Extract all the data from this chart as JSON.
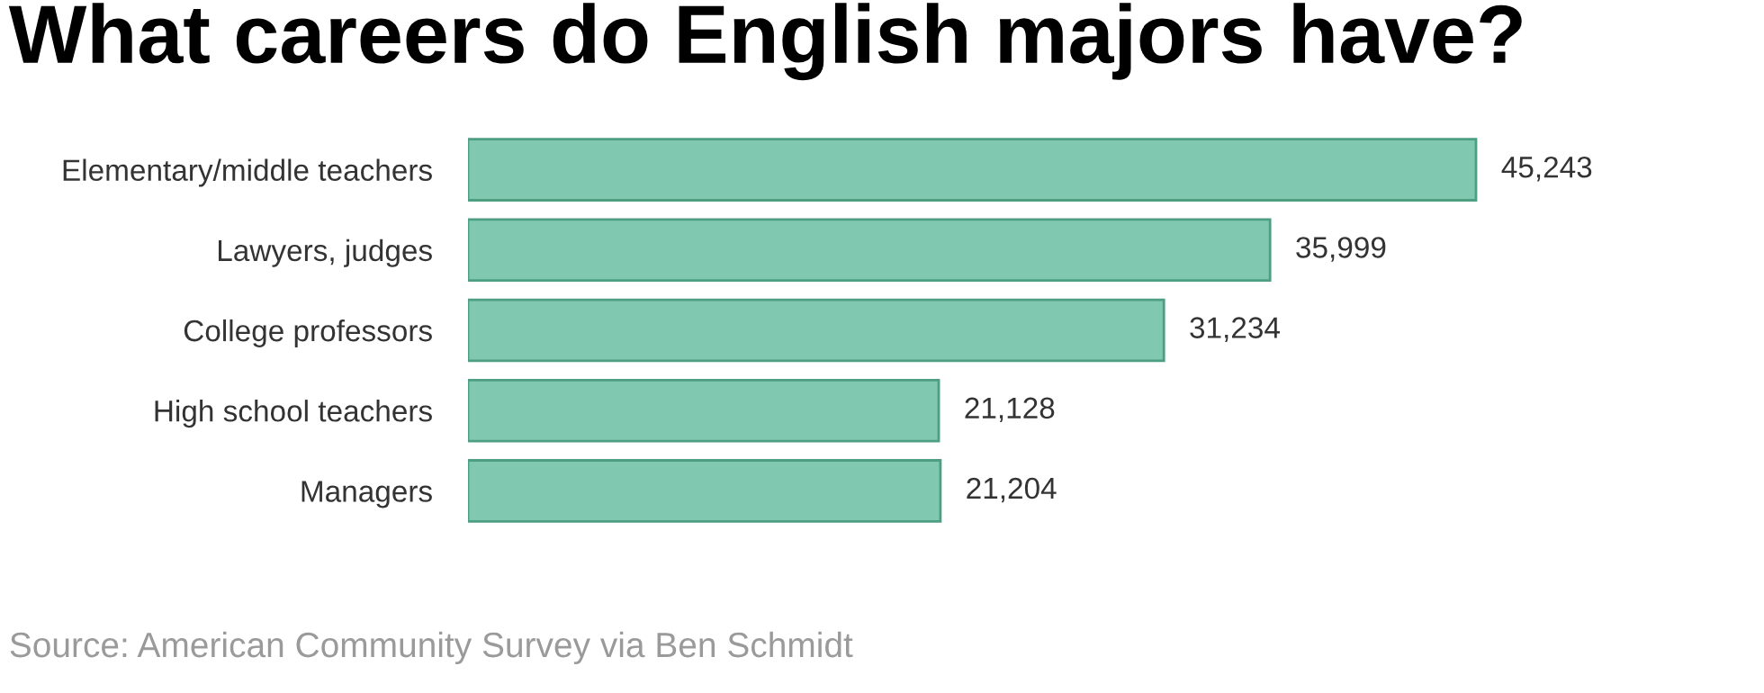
{
  "chart_data": {
    "type": "bar",
    "orientation": "horizontal",
    "title": "What careers do English majors have?",
    "categories": [
      "Elementary/middle teachers",
      "Lawyers, judges",
      "College professors",
      "High school teachers",
      "Managers"
    ],
    "values": [
      45243,
      35999,
      31234,
      21128,
      21204
    ],
    "value_labels": [
      "45,243",
      "35,999",
      "31,234",
      "21,128",
      "21,204"
    ],
    "color": "#80c9b0",
    "annotations": [
      "Source: American Community Survey via Ben Schmidt"
    ],
    "grid": false,
    "legend": false
  }
}
